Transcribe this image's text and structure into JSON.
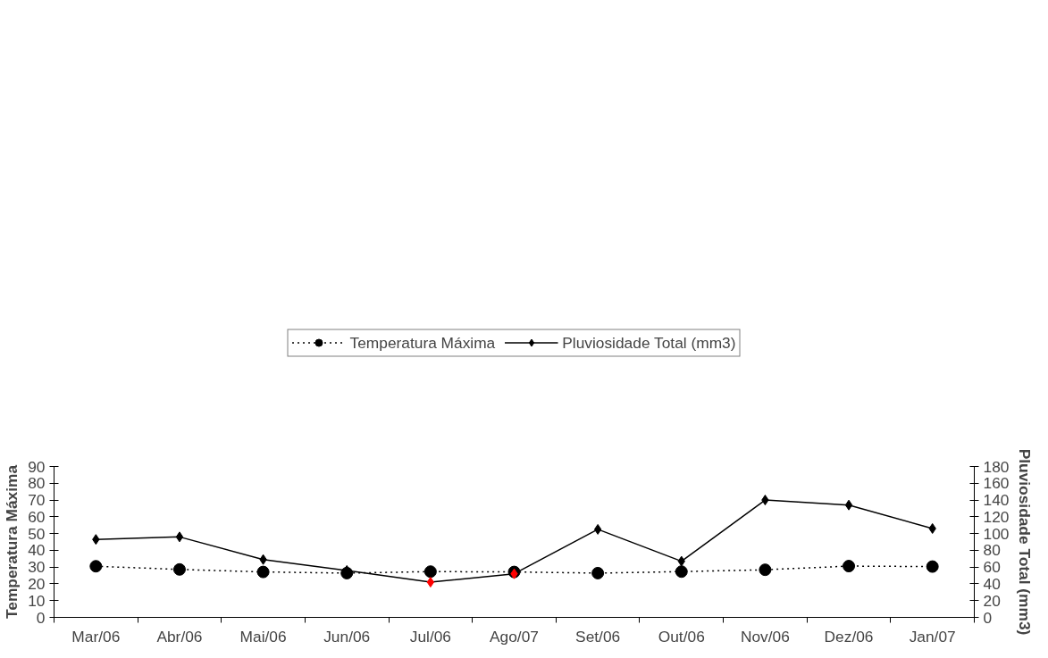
{
  "chart_data": {
    "type": "line",
    "categories": [
      "Mar/06",
      "Abr/06",
      "Mai/06",
      "Jun/06",
      "Jul/06",
      "Ago/07",
      "Set/06",
      "Out/06",
      "Nov/06",
      "Dez/06",
      "Jan/07"
    ],
    "series": [
      {
        "name": "Temperatura Máxima",
        "color": "#000000",
        "marker": "circle",
        "line_style": "dotted",
        "values": [
          30.5,
          28.6,
          27.1,
          26.4,
          27.3,
          27.1,
          26.4,
          27.3,
          28.4,
          30.6,
          30.3
        ]
      },
      {
        "name": "Pluviosidade Total (mm3)",
        "color": "#000000",
        "marker": "diamond",
        "line_style": "solid",
        "axis": "y2",
        "colors": [
          "#000000",
          "#000000",
          "#000000",
          "#000000",
          "#ff0000",
          "#ff0000",
          "#000000",
          "#000000",
          "#000000",
          "#000000",
          "#000000"
        ],
        "values": [
          93,
          96,
          69,
          56,
          42,
          52,
          105,
          67,
          140,
          134,
          106
        ]
      }
    ],
    "ylabel": "Temperatura Máxima",
    "y2label": "Pluviosidade Total (mm3)",
    "ylim": [
      0,
      90
    ],
    "yticks": [
      0,
      10,
      20,
      30,
      40,
      50,
      60,
      70,
      80,
      90
    ],
    "y2lim": [
      0,
      180
    ],
    "y2ticks": [
      0,
      20,
      40,
      60,
      80,
      100,
      120,
      140,
      160,
      180
    ],
    "grid": false,
    "legend": "top"
  }
}
